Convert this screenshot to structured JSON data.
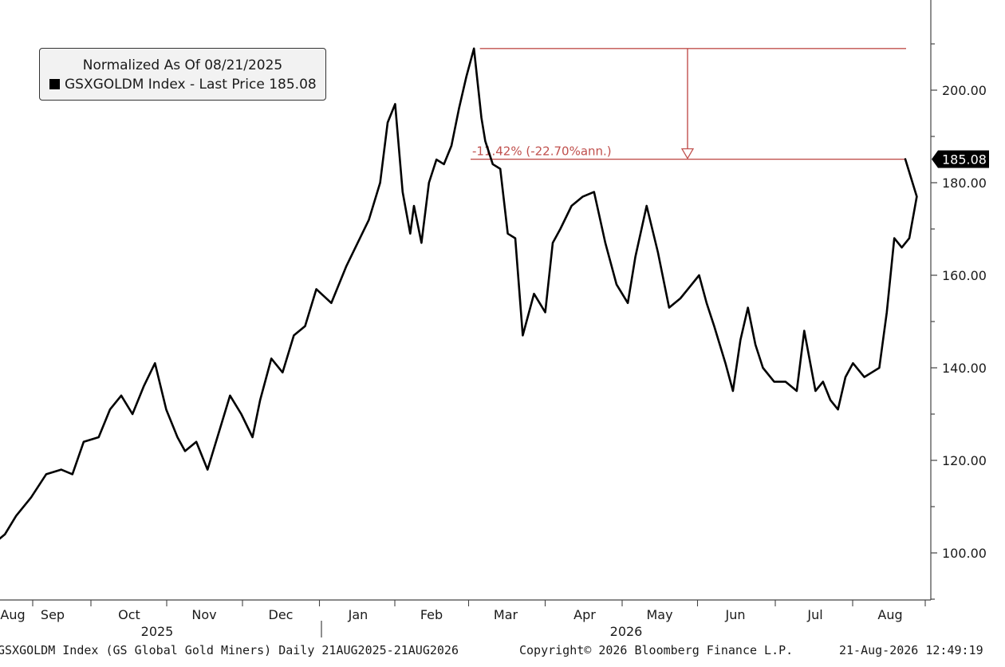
{
  "legend": {
    "title": "Normalized As Of 08/21/2025",
    "series_label": "GSXGOLDM Index - Last Price 185.08"
  },
  "footer": {
    "left": "GSXGOLDM Index (GS Global Gold Miners) Daily 21AUG2025-21AUG2026",
    "center": "Copyright© 2026 Bloomberg Finance L.P.",
    "right": "21-Aug-2026 12:49:19"
  },
  "colors": {
    "line": "#000000",
    "annotation": "#c0504d",
    "axis": "#444444"
  },
  "chart_data": {
    "type": "line",
    "ylim": [
      89,
      222
    ],
    "yticks": [
      100,
      120,
      140,
      160,
      180,
      200
    ],
    "ytick_labels": [
      "100.00",
      "120.00",
      "140.00",
      "160.00",
      "180.00",
      "200.00"
    ],
    "x_months": [
      "Aug",
      "Sep",
      "Oct",
      "Nov",
      "Dec",
      "Jan",
      "Feb",
      "Mar",
      "Apr",
      "May",
      "Jun",
      "Jul",
      "Aug"
    ],
    "x_years": [
      "2025",
      "2026"
    ],
    "last_price_label": "185.08",
    "annotation": {
      "text": "-11.42% (-22.70%ann.)",
      "from_value": 209.0,
      "to_value": 185.08,
      "start_t": 6.5
    },
    "series": [
      {
        "t": [
          0,
          0.15,
          0.3,
          0.5,
          0.7,
          0.9,
          1.05,
          1.2,
          1.4,
          1.55,
          1.7,
          1.85,
          2.0,
          2.15,
          2.3,
          2.45,
          2.55,
          2.7,
          2.85,
          3.0,
          3.15,
          3.3,
          3.45,
          3.55,
          3.7,
          3.85,
          4.0,
          4.15,
          4.3,
          4.5,
          4.7,
          4.85,
          5.0,
          5.15,
          5.25,
          5.35,
          5.45,
          5.55,
          5.6,
          5.7,
          5.8,
          5.9,
          6.0,
          6.1,
          6.2,
          6.3,
          6.4,
          6.5,
          6.55,
          6.65,
          6.75,
          6.85,
          6.95,
          7.05,
          7.2,
          7.35,
          7.45,
          7.55,
          7.7,
          7.85,
          8.0,
          8.15,
          8.3,
          8.45,
          8.55,
          8.7,
          8.85,
          9.0,
          9.15,
          9.25,
          9.4,
          9.5,
          9.6,
          9.75,
          9.85,
          9.95,
          10.05,
          10.15,
          10.25,
          10.4,
          10.55,
          10.7,
          10.8,
          10.95,
          11.05,
          11.15,
          11.25,
          11.35,
          11.45,
          11.6,
          11.7,
          11.8,
          11.9,
          12.0,
          12.1,
          12.2,
          12.3,
          12.35
        ],
        "values": [
          102,
          104,
          108,
          112,
          117,
          118,
          117,
          124,
          125,
          131,
          134,
          130,
          136,
          141,
          131,
          125,
          122,
          124,
          118,
          126,
          134,
          130,
          125,
          133,
          142,
          139,
          147,
          149,
          157,
          154,
          162,
          167,
          172,
          180,
          193,
          197,
          178,
          169,
          175,
          167,
          180,
          185,
          184,
          188,
          196,
          203,
          209,
          194,
          189,
          184,
          183,
          169,
          168,
          147,
          156,
          152,
          167,
          170,
          175,
          177,
          178,
          167,
          158,
          154,
          164,
          175,
          165,
          153,
          155,
          157,
          160,
          154,
          149,
          141,
          135,
          146,
          153,
          145,
          140,
          137,
          137,
          135,
          148,
          135,
          137,
          133,
          131,
          138,
          141,
          138,
          139,
          140,
          152,
          168,
          166,
          168,
          177,
          185.08
        ]
      }
    ]
  }
}
